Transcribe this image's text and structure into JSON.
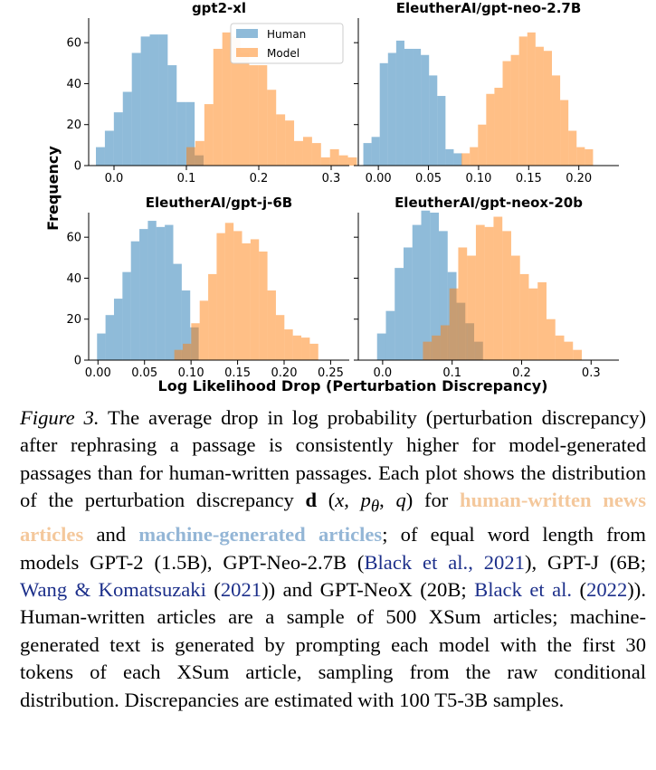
{
  "figure": {
    "ylabel": "Frequency",
    "xlabel": "Log Likelihood Drop (Perturbation Discrepancy)",
    "legend": {
      "human": "Human",
      "model": "Model"
    },
    "colors": {
      "human": "#1f77b4",
      "model": "#ff7f0e"
    }
  },
  "chart_data": [
    {
      "type": "bar",
      "title": "gpt2-xl",
      "xlim": [
        -0.035,
        0.325
      ],
      "ylim": [
        0,
        72
      ],
      "xticks": [
        "0.0",
        "0.1",
        "0.2",
        "0.3"
      ],
      "xtick_values": [
        0.0,
        0.1,
        0.2,
        0.3
      ],
      "yticks": [
        "0",
        "20",
        "40",
        "60"
      ],
      "ytick_values": [
        0,
        20,
        40,
        60
      ],
      "legend_position": "top-center",
      "series": [
        {
          "name": "Human",
          "bin_start": -0.025,
          "bin_width": 0.0124,
          "counts": [
            9,
            17,
            26,
            36,
            55,
            63,
            64,
            64,
            49,
            31,
            31,
            5
          ]
        },
        {
          "name": "Model",
          "bin_start": 0.1,
          "bin_width": 0.0124,
          "counts": [
            9,
            12,
            30,
            57,
            65,
            63,
            55,
            49,
            49,
            37,
            25,
            22,
            12,
            14,
            11,
            4,
            8,
            5,
            4
          ]
        }
      ]
    },
    {
      "type": "bar",
      "title": "EleutherAI/gpt-neo-2.7B",
      "xlim": [
        -0.02,
        0.24
      ],
      "ylim": [
        0,
        72
      ],
      "xticks": [
        "0.00",
        "0.05",
        "0.10",
        "0.15",
        "0.20"
      ],
      "xtick_values": [
        0.0,
        0.05,
        0.1,
        0.15,
        0.2
      ],
      "yticks": [],
      "ytick_values": [
        0,
        20,
        40,
        60
      ],
      "series": [
        {
          "name": "Human",
          "bin_start": -0.015,
          "bin_width": 0.0082,
          "counts": [
            11,
            14,
            50,
            55,
            61,
            57,
            57,
            54,
            44,
            34,
            8,
            6
          ]
        },
        {
          "name": "Model",
          "bin_start": 0.083,
          "bin_width": 0.0082,
          "counts": [
            6,
            9,
            20,
            35,
            38,
            51,
            54,
            63,
            65,
            58,
            56,
            44,
            32,
            17,
            9,
            8
          ]
        }
      ]
    },
    {
      "type": "bar",
      "title": "EleutherAI/gpt-j-6B",
      "xlim": [
        -0.01,
        0.27
      ],
      "ylim": [
        0,
        72
      ],
      "xticks": [
        "0.00",
        "0.05",
        "0.10",
        "0.15",
        "0.20",
        "0.25"
      ],
      "xtick_values": [
        0.0,
        0.05,
        0.1,
        0.15,
        0.2,
        0.25
      ],
      "yticks": [
        "0",
        "20",
        "40",
        "60"
      ],
      "ytick_values": [
        0,
        20,
        40,
        60
      ],
      "series": [
        {
          "name": "Human",
          "bin_start": -0.001,
          "bin_width": 0.0091,
          "counts": [
            13,
            22,
            30,
            43,
            58,
            64,
            68,
            65,
            66,
            47,
            34,
            16
          ]
        },
        {
          "name": "Model",
          "bin_start": 0.082,
          "bin_width": 0.0091,
          "counts": [
            5,
            8,
            18,
            29,
            42,
            62,
            67,
            63,
            57,
            59,
            53,
            34,
            22,
            15,
            12,
            11,
            8
          ]
        }
      ]
    },
    {
      "type": "bar",
      "title": "EleutherAI/gpt-neox-20b",
      "xlim": [
        -0.035,
        0.34
      ],
      "ylim": [
        0,
        72
      ],
      "xticks": [
        "0.0",
        "0.1",
        "0.2",
        "0.3"
      ],
      "xtick_values": [
        0.0,
        0.1,
        0.2,
        0.3
      ],
      "yticks": [],
      "ytick_values": [
        0,
        20,
        40,
        60
      ],
      "series": [
        {
          "name": "Human",
          "bin_start": -0.008,
          "bin_width": 0.0127,
          "counts": [
            13,
            24,
            45,
            55,
            66,
            73,
            72,
            63,
            43,
            28,
            18,
            9
          ]
        },
        {
          "name": "Model",
          "bin_start": 0.058,
          "bin_width": 0.0127,
          "counts": [
            9,
            12,
            17,
            35,
            55,
            51,
            66,
            65,
            70,
            63,
            51,
            42,
            35,
            38,
            20,
            12,
            9,
            5
          ]
        }
      ]
    }
  ],
  "caption": {
    "label": "Figure 3.",
    "part1": " The average drop in log probability (perturbation discrepancy) after rephrasing a passage is consistently higher for model-generated passages than for human-written passages. Each plot shows the distribution of the perturbation discrepancy ",
    "math_d": "d",
    "math_open": " (",
    "math_x": "x",
    "math_comma1": ", ",
    "math_p": "p",
    "math_theta": "θ",
    "math_comma2": ", ",
    "math_q": "q",
    "math_close": ")",
    "part2": " for ",
    "human_text": "human-written news articles",
    "part3": " and ",
    "model_text": "machine-generated articles",
    "part4": "; of equal word length from models GPT-2 (1.5B), GPT-Neo-2.7B (",
    "cite1": "Black et al., 2021",
    "part5": "), GPT-J (6B; ",
    "cite2": "Wang & Komatsuzaki",
    "part6": " (",
    "cite2_year": "2021",
    "part7": ")) and GPT-NeoX (20B; ",
    "cite3": "Black et al.",
    "part8": " (",
    "cite3_year": "2022",
    "part9": ")). Human-written articles are a sample of 500 XSum articles; machine-generated text is generated by prompting each model with the first 30 tokens of each XSum article, sampling from the raw conditional distribution. Discrepancies are estimated with 100 T5-3B samples."
  }
}
